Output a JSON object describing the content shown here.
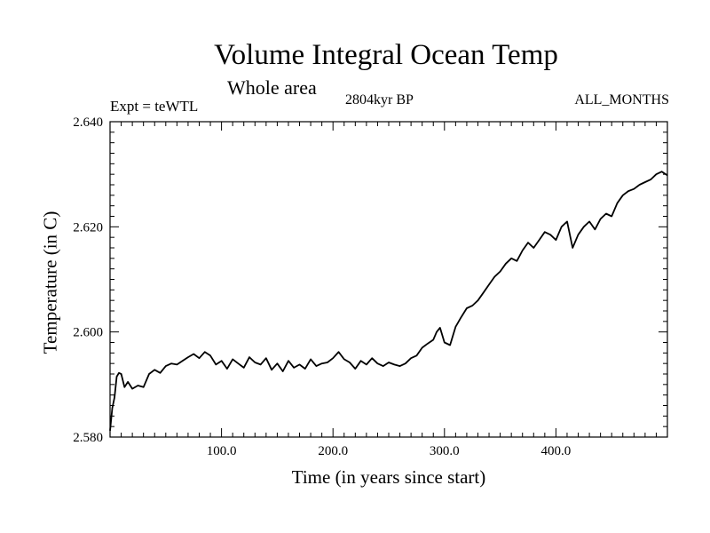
{
  "chart_data": {
    "type": "line",
    "title": "Volume Integral Ocean Temp",
    "subtitle": "Whole area",
    "experiment_label": "Expt = teWTL",
    "date_label": "2804kyr BP",
    "months_label": "ALL_MONTHS",
    "xlabel": "Time (in years since start)",
    "ylabel": "Temperature (in C)",
    "xlim": [
      0,
      500
    ],
    "ylim": [
      2.58,
      2.64
    ],
    "x_ticks": [
      100,
      200,
      300,
      400
    ],
    "x_tick_labels": [
      "100.0",
      "200.0",
      "300.0",
      "400.0"
    ],
    "y_ticks": [
      2.58,
      2.6,
      2.62,
      2.64
    ],
    "y_tick_labels": [
      "2.580",
      "2.600",
      "2.620",
      "2.640"
    ],
    "grid": false,
    "series": [
      {
        "name": "Volume integral ocean temperature",
        "color": "#000000",
        "x": [
          0,
          2,
          4,
          6,
          8,
          10,
          13,
          16,
          20,
          25,
          30,
          35,
          40,
          45,
          50,
          55,
          60,
          65,
          70,
          75,
          80,
          85,
          90,
          95,
          100,
          105,
          110,
          115,
          120,
          125,
          130,
          135,
          140,
          145,
          150,
          155,
          160,
          165,
          170,
          175,
          180,
          185,
          190,
          195,
          200,
          205,
          210,
          215,
          220,
          225,
          230,
          235,
          240,
          245,
          250,
          255,
          260,
          265,
          270,
          275,
          280,
          285,
          290,
          293,
          296,
          300,
          305,
          310,
          315,
          320,
          325,
          330,
          335,
          340,
          345,
          350,
          355,
          360,
          365,
          370,
          375,
          380,
          385,
          390,
          395,
          400,
          405,
          410,
          415,
          420,
          425,
          430,
          435,
          440,
          445,
          450,
          455,
          460,
          465,
          470,
          475,
          480,
          485,
          490,
          495,
          500
        ],
        "values": [
          2.5812,
          2.5855,
          2.5875,
          2.5915,
          2.5922,
          2.592,
          2.5895,
          2.5905,
          2.5892,
          2.5898,
          2.5895,
          2.592,
          2.5928,
          2.5922,
          2.5935,
          2.594,
          2.5938,
          2.5945,
          2.5952,
          2.5958,
          2.595,
          2.5962,
          2.5955,
          2.5938,
          2.5945,
          2.593,
          2.5948,
          2.594,
          2.5932,
          2.5952,
          2.5942,
          2.5938,
          2.595,
          2.5928,
          2.594,
          2.5925,
          2.5945,
          2.5932,
          2.5938,
          2.593,
          2.5948,
          2.5935,
          2.594,
          2.5942,
          2.595,
          2.5962,
          2.5948,
          2.5942,
          2.593,
          2.5945,
          2.5938,
          2.595,
          2.594,
          2.5935,
          2.5942,
          2.5938,
          2.5935,
          2.594,
          2.595,
          2.5955,
          2.597,
          2.5978,
          2.5985,
          2.6,
          2.6008,
          2.598,
          2.5975,
          2.601,
          2.6028,
          2.6045,
          2.605,
          2.606,
          2.6075,
          2.609,
          2.6105,
          2.6115,
          2.613,
          2.614,
          2.6135,
          2.6155,
          2.617,
          2.616,
          2.6175,
          2.619,
          2.6185,
          2.6175,
          2.62,
          2.621,
          2.616,
          2.6185,
          2.62,
          2.621,
          2.6195,
          2.6215,
          2.6225,
          2.622,
          2.6245,
          2.626,
          2.6268,
          2.6272,
          2.628,
          2.6285,
          2.629,
          2.63,
          2.6305,
          2.6298
        ]
      }
    ]
  }
}
